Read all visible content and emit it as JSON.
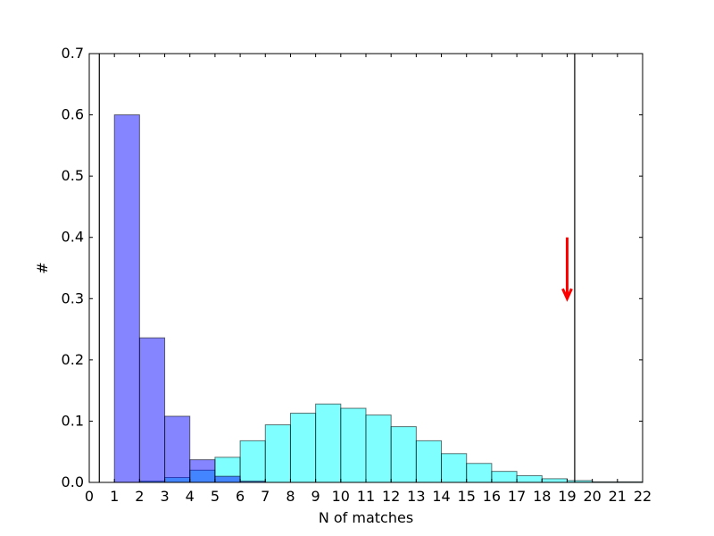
{
  "chart_data": {
    "type": "bar",
    "xlabel": "N of matches",
    "ylabel": "#",
    "xlim": [
      0,
      22
    ],
    "ylim": [
      0,
      0.7
    ],
    "xticks": [
      "0",
      "1",
      "2",
      "3",
      "4",
      "5",
      "6",
      "7",
      "8",
      "9",
      "10",
      "11",
      "12",
      "13",
      "14",
      "15",
      "16",
      "17",
      "18",
      "19",
      "20",
      "21",
      "22"
    ],
    "yticks": [
      "0.0",
      "0.1",
      "0.2",
      "0.3",
      "0.4",
      "0.5",
      "0.6",
      "0.7"
    ],
    "grid": false,
    "series": [
      {
        "color": "#00ffff",
        "opacity": 0.5,
        "bins": [
          {
            "x0": 2,
            "x1": 3,
            "value": 0.002
          },
          {
            "x0": 3,
            "x1": 4,
            "value": 0.008
          },
          {
            "x0": 4,
            "x1": 5,
            "value": 0.02
          },
          {
            "x0": 5,
            "x1": 6,
            "value": 0.041
          },
          {
            "x0": 6,
            "x1": 7,
            "value": 0.068
          },
          {
            "x0": 7,
            "x1": 8,
            "value": 0.094
          },
          {
            "x0": 8,
            "x1": 9,
            "value": 0.113
          },
          {
            "x0": 9,
            "x1": 10,
            "value": 0.128
          },
          {
            "x0": 10,
            "x1": 11,
            "value": 0.121
          },
          {
            "x0": 11,
            "x1": 12,
            "value": 0.11
          },
          {
            "x0": 12,
            "x1": 13,
            "value": 0.091
          },
          {
            "x0": 13,
            "x1": 14,
            "value": 0.068
          },
          {
            "x0": 14,
            "x1": 15,
            "value": 0.047
          },
          {
            "x0": 15,
            "x1": 16,
            "value": 0.031
          },
          {
            "x0": 16,
            "x1": 17,
            "value": 0.018
          },
          {
            "x0": 17,
            "x1": 18,
            "value": 0.011
          },
          {
            "x0": 18,
            "x1": 19,
            "value": 0.006
          },
          {
            "x0": 19,
            "x1": 20,
            "value": 0.003
          },
          {
            "x0": 20,
            "x1": 21,
            "value": 0.001
          },
          {
            "x0": 21,
            "x1": 22,
            "value": 0.001
          }
        ]
      },
      {
        "color": "#0000ff",
        "opacity": 0.48,
        "bins": [
          {
            "x0": 1,
            "x1": 2,
            "value": 0.6
          },
          {
            "x0": 2,
            "x1": 3,
            "value": 0.236
          },
          {
            "x0": 3,
            "x1": 4,
            "value": 0.108
          },
          {
            "x0": 4,
            "x1": 5,
            "value": 0.037
          },
          {
            "x0": 5,
            "x1": 6,
            "value": 0.01
          },
          {
            "x0": 6,
            "x1": 7,
            "value": 0.002
          }
        ]
      }
    ],
    "vlines": [
      {
        "x": 0.4,
        "color": "#000000"
      },
      {
        "x": 19.3,
        "color": "#000000"
      }
    ],
    "arrow": {
      "x": 19.0,
      "y_start": 0.4,
      "y_end": 0.3,
      "color": "#ff0000"
    }
  }
}
